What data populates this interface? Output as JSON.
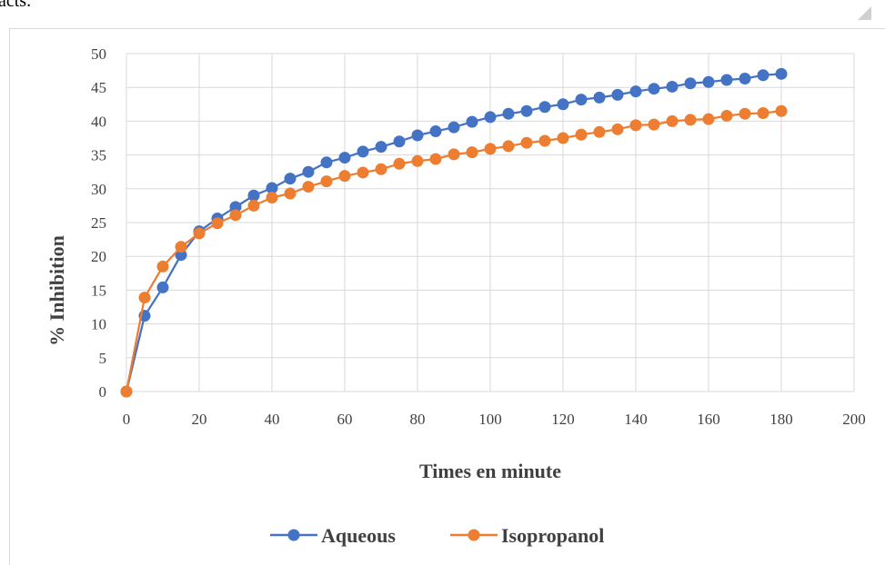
{
  "page": {
    "top_fragment": "acts."
  },
  "chart_data": {
    "type": "line",
    "title": "",
    "xlabel": "Times en minute",
    "ylabel": "% Inhibition",
    "xlim": [
      0,
      200
    ],
    "ylim": [
      0,
      50
    ],
    "x_ticks": [
      0,
      20,
      40,
      60,
      80,
      100,
      120,
      140,
      160,
      180,
      200
    ],
    "y_ticks": [
      0,
      5,
      10,
      15,
      20,
      25,
      30,
      35,
      40,
      45,
      50
    ],
    "grid": "horizontal",
    "legend_position": "bottom",
    "x": [
      0,
      5,
      10,
      15,
      20,
      25,
      30,
      35,
      40,
      45,
      50,
      55,
      60,
      65,
      70,
      75,
      80,
      85,
      90,
      95,
      100,
      105,
      110,
      115,
      120,
      125,
      130,
      135,
      140,
      145,
      150,
      155,
      160,
      165,
      170,
      175,
      180
    ],
    "series": [
      {
        "name": "Aqueous",
        "color": "#4472c4",
        "values": [
          0,
          11.2,
          15.4,
          20.2,
          23.7,
          25.6,
          27.3,
          29.0,
          30.1,
          31.5,
          32.5,
          33.9,
          34.6,
          35.5,
          36.2,
          37.0,
          37.9,
          38.5,
          39.1,
          39.9,
          40.6,
          41.1,
          41.5,
          42.1,
          42.5,
          43.2,
          43.5,
          43.9,
          44.4,
          44.8,
          45.1,
          45.6,
          45.8,
          46.1,
          46.3,
          46.8,
          47.0
        ]
      },
      {
        "name": "Isopropanol",
        "color": "#ed7d31",
        "values": [
          0,
          13.9,
          18.5,
          21.4,
          23.4,
          24.9,
          26.1,
          27.5,
          28.7,
          29.3,
          30.3,
          31.1,
          31.9,
          32.4,
          32.9,
          33.7,
          34.1,
          34.4,
          35.1,
          35.4,
          35.9,
          36.3,
          36.8,
          37.1,
          37.5,
          38.0,
          38.4,
          38.8,
          39.4,
          39.5,
          40.0,
          40.2,
          40.3,
          40.8,
          41.1,
          41.2,
          41.5
        ]
      }
    ]
  }
}
